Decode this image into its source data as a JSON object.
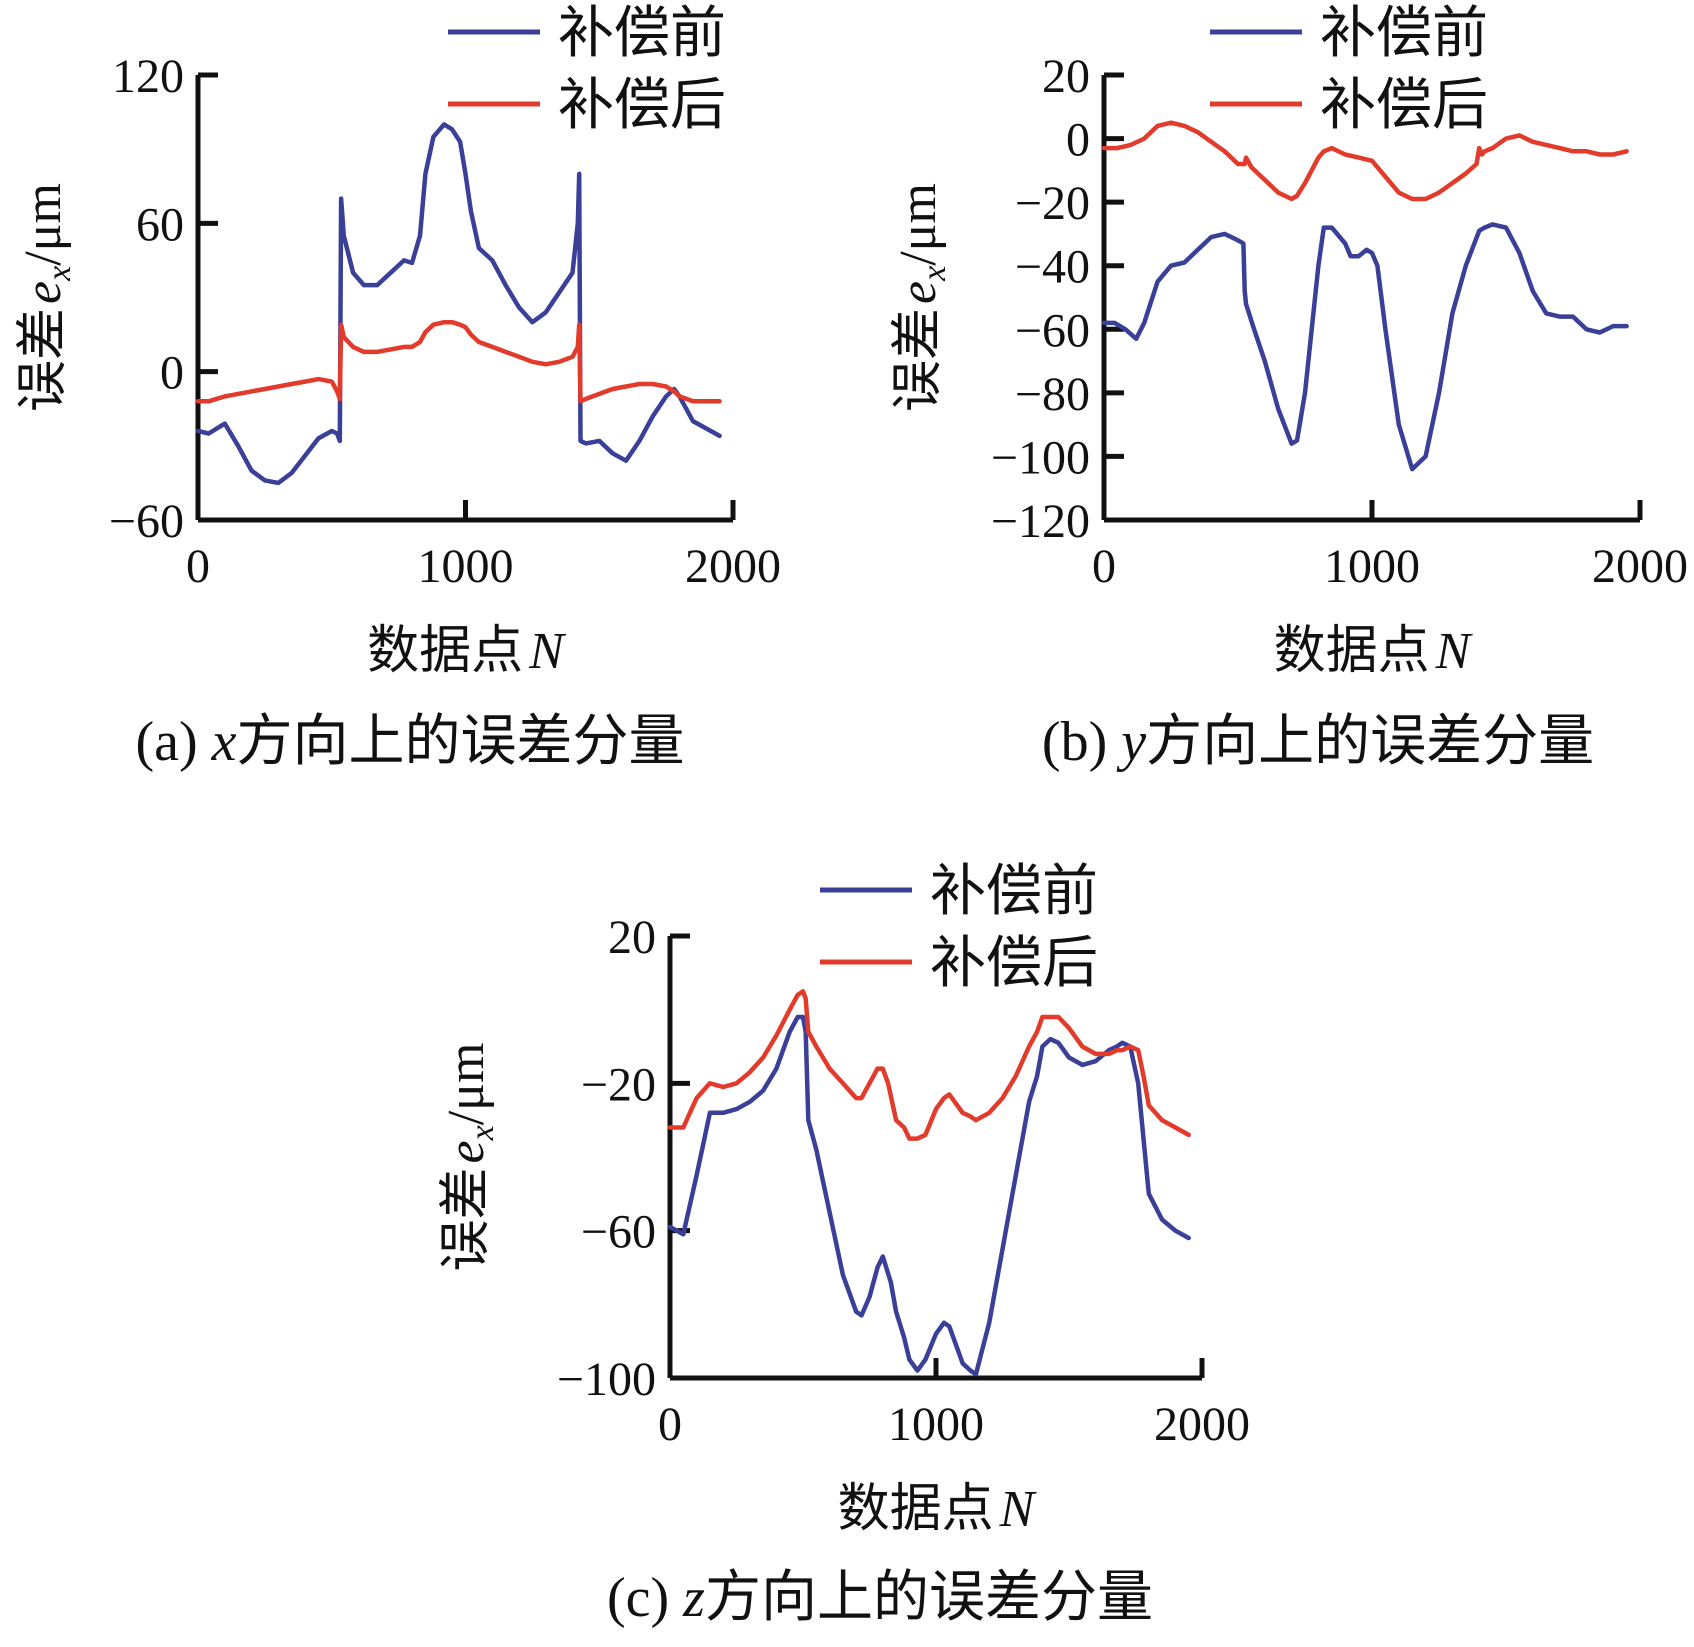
{
  "chart_data": [
    {
      "type": "line",
      "caption": {
        "prefix": "(a) ",
        "var": "x",
        "rest": "方向上的误差分量"
      },
      "xlabel": {
        "text": "数据点",
        "var": "N"
      },
      "ylabel": {
        "text": "误差",
        "var": "e",
        "sub": "x",
        "unit": "/μm"
      },
      "xlim": [
        0,
        2000
      ],
      "ylim": [
        -60,
        120
      ],
      "xticks": [
        0,
        1000,
        2000
      ],
      "yticks": [
        -60,
        0,
        60,
        120
      ],
      "ytick_labels": [
        "−60",
        "0",
        "60",
        "120"
      ],
      "legend_position": "top-right",
      "series": [
        {
          "name": "补偿前",
          "color": "#3a3f98",
          "x": [
            0,
            40,
            100,
            150,
            200,
            250,
            300,
            350,
            400,
            450,
            500,
            520,
            530,
            535,
            545,
            580,
            620,
            670,
            720,
            770,
            800,
            830,
            850,
            880,
            920,
            950,
            980,
            1000,
            1020,
            1050,
            1100,
            1150,
            1200,
            1250,
            1300,
            1350,
            1400,
            1420,
            1425,
            1430,
            1450,
            1500,
            1550,
            1600,
            1650,
            1700,
            1750,
            1780,
            1800,
            1850,
            1900,
            1950
          ],
          "y": [
            -24,
            -25,
            -21,
            -30,
            -40,
            -44,
            -45,
            -41,
            -34,
            -27,
            -24,
            -25,
            -28,
            70,
            55,
            40,
            35,
            35,
            40,
            45,
            44,
            55,
            80,
            95,
            100,
            98,
            93,
            80,
            65,
            50,
            45,
            35,
            26,
            20,
            24,
            32,
            40,
            60,
            80,
            -28,
            -29,
            -28,
            -33,
            -36,
            -28,
            -18,
            -10,
            -7,
            -10,
            -20,
            -23,
            -26
          ]
        },
        {
          "name": "补偿后",
          "color": "#e23b2c",
          "x": [
            0,
            40,
            100,
            150,
            200,
            250,
            300,
            350,
            400,
            450,
            500,
            520,
            530,
            535,
            545,
            580,
            620,
            670,
            720,
            770,
            800,
            830,
            850,
            880,
            920,
            950,
            980,
            1000,
            1020,
            1050,
            1100,
            1150,
            1200,
            1250,
            1300,
            1350,
            1400,
            1420,
            1425,
            1430,
            1450,
            1500,
            1550,
            1600,
            1650,
            1700,
            1750,
            1780,
            1800,
            1850,
            1900,
            1950
          ],
          "y": [
            -12,
            -12,
            -10,
            -9,
            -8,
            -7,
            -6,
            -5,
            -4,
            -3,
            -4,
            -8,
            -11,
            19,
            14,
            10,
            8,
            8,
            9,
            10,
            10,
            12,
            16,
            19,
            20,
            20,
            19,
            18,
            15,
            12,
            10,
            8,
            6,
            4,
            3,
            4,
            6,
            10,
            19,
            -12,
            -11,
            -9,
            -7,
            -6,
            -5,
            -5,
            -6,
            -8,
            -10,
            -12,
            -12,
            -12
          ]
        }
      ]
    },
    {
      "type": "line",
      "caption": {
        "prefix": "(b) ",
        "var": "y",
        "rest": "方向上的误差分量"
      },
      "xlabel": {
        "text": "数据点",
        "var": "N"
      },
      "ylabel": {
        "text": "误差",
        "var": "e",
        "sub": "x",
        "unit": "/μm"
      },
      "xlim": [
        0,
        2000
      ],
      "ylim": [
        -120,
        20
      ],
      "xticks": [
        0,
        1000,
        2000
      ],
      "yticks": [
        -120,
        -100,
        -80,
        -60,
        -40,
        -20,
        0,
        20
      ],
      "ytick_labels": [
        "−120",
        "−100",
        "−80",
        "−60",
        "−40",
        "−20",
        "0",
        "20"
      ],
      "legend_position": "top-right",
      "series": [
        {
          "name": "补偿前",
          "color": "#3a3f98",
          "x": [
            0,
            40,
            80,
            120,
            150,
            200,
            250,
            300,
            350,
            400,
            450,
            500,
            520,
            525,
            530,
            560,
            600,
            650,
            700,
            720,
            750,
            800,
            820,
            850,
            900,
            920,
            950,
            980,
            1000,
            1020,
            1050,
            1100,
            1150,
            1200,
            1250,
            1300,
            1350,
            1400,
            1420,
            1450,
            1500,
            1550,
            1600,
            1650,
            1700,
            1750,
            1800,
            1850,
            1900,
            1950
          ],
          "y": [
            -58,
            -58,
            -60,
            -63,
            -58,
            -45,
            -40,
            -39,
            -35,
            -31,
            -30,
            -32,
            -33,
            -48,
            -52,
            -60,
            -70,
            -85,
            -96,
            -95,
            -80,
            -40,
            -28,
            -28,
            -33,
            -37,
            -37,
            -35,
            -36,
            -40,
            -60,
            -90,
            -104,
            -100,
            -80,
            -55,
            -40,
            -29,
            -28,
            -27,
            -28,
            -36,
            -48,
            -55,
            -56,
            -56,
            -60,
            -61,
            -59,
            -59
          ]
        },
        {
          "name": "补偿后",
          "color": "#e23b2c",
          "x": [
            0,
            50,
            100,
            150,
            200,
            250,
            300,
            350,
            400,
            450,
            500,
            520,
            525,
            530,
            550,
            600,
            650,
            700,
            720,
            750,
            800,
            820,
            850,
            900,
            950,
            1000,
            1050,
            1100,
            1150,
            1200,
            1250,
            1300,
            1350,
            1390,
            1400,
            1410,
            1420,
            1450,
            1500,
            1550,
            1600,
            1650,
            1700,
            1750,
            1800,
            1850,
            1900,
            1950
          ],
          "y": [
            -3,
            -3,
            -2,
            0,
            4,
            5,
            4,
            2,
            -1,
            -4,
            -8,
            -8,
            -8,
            -6,
            -9,
            -13,
            -17,
            -19,
            -18,
            -14,
            -6,
            -4,
            -3,
            -5,
            -6,
            -7,
            -12,
            -17,
            -19,
            -19,
            -17,
            -14,
            -11,
            -8,
            -3,
            -5,
            -4,
            -3,
            0,
            1,
            -1,
            -2,
            -3,
            -4,
            -4,
            -5,
            -5,
            -4
          ]
        }
      ]
    },
    {
      "type": "line",
      "caption": {
        "prefix": "(c) ",
        "var": "z",
        "rest": "方向上的误差分量"
      },
      "xlabel": {
        "text": "数据点",
        "var": "N"
      },
      "ylabel": {
        "text": "误差",
        "var": "e",
        "sub": "x",
        "unit": "/μm"
      },
      "xlim": [
        0,
        2000
      ],
      "ylim": [
        -100,
        20
      ],
      "xticks": [
        0,
        1000,
        2000
      ],
      "yticks": [
        -100,
        -60,
        -20,
        20
      ],
      "ytick_labels": [
        "−100",
        "−60",
        "−20",
        "20"
      ],
      "legend_position": "top-right",
      "series": [
        {
          "name": "补偿前",
          "color": "#3a3f98",
          "x": [
            0,
            50,
            100,
            150,
            200,
            250,
            300,
            350,
            400,
            450,
            480,
            500,
            510,
            520,
            550,
            600,
            650,
            700,
            720,
            750,
            780,
            800,
            830,
            850,
            880,
            900,
            930,
            960,
            1000,
            1030,
            1050,
            1080,
            1100,
            1130,
            1150,
            1200,
            1250,
            1300,
            1350,
            1380,
            1400,
            1430,
            1460,
            1500,
            1550,
            1600,
            1650,
            1680,
            1700,
            1730,
            1760,
            1780,
            1800,
            1850,
            1900,
            1950
          ],
          "y": [
            -59,
            -61,
            -45,
            -28,
            -28,
            -27,
            -25,
            -22,
            -16,
            -6,
            -2,
            -2,
            -6,
            -30,
            -38,
            -55,
            -72,
            -82,
            -83,
            -78,
            -70,
            -67,
            -74,
            -82,
            -89,
            -95,
            -98,
            -95,
            -88,
            -85,
            -86,
            -92,
            -96,
            -98,
            -99,
            -85,
            -65,
            -45,
            -25,
            -18,
            -10,
            -8,
            -9,
            -13,
            -15,
            -14,
            -11,
            -10,
            -9,
            -10,
            -20,
            -35,
            -50,
            -57,
            -60,
            -62
          ]
        },
        {
          "name": "补偿后",
          "color": "#e23b2c",
          "x": [
            0,
            50,
            100,
            150,
            200,
            250,
            300,
            350,
            400,
            450,
            480,
            500,
            510,
            520,
            550,
            600,
            650,
            700,
            720,
            750,
            780,
            800,
            820,
            850,
            880,
            900,
            930,
            960,
            1000,
            1030,
            1050,
            1080,
            1100,
            1130,
            1150,
            1200,
            1250,
            1300,
            1350,
            1380,
            1400,
            1430,
            1460,
            1500,
            1550,
            1600,
            1650,
            1680,
            1700,
            1730,
            1760,
            1780,
            1800,
            1850,
            1900,
            1950
          ],
          "y": [
            -32,
            -32,
            -24,
            -20,
            -21,
            -20,
            -17,
            -13,
            -7,
            0,
            4,
            5,
            3,
            -6,
            -10,
            -16,
            -20,
            -24,
            -24,
            -20,
            -16,
            -16,
            -20,
            -30,
            -32,
            -35,
            -35,
            -34,
            -27,
            -24,
            -23,
            -26,
            -28,
            -29,
            -30,
            -28,
            -24,
            -18,
            -10,
            -6,
            -2,
            -2,
            -2,
            -5,
            -10,
            -12,
            -12,
            -11,
            -11,
            -10,
            -11,
            -18,
            -26,
            -30,
            -32,
            -34
          ]
        }
      ]
    }
  ]
}
